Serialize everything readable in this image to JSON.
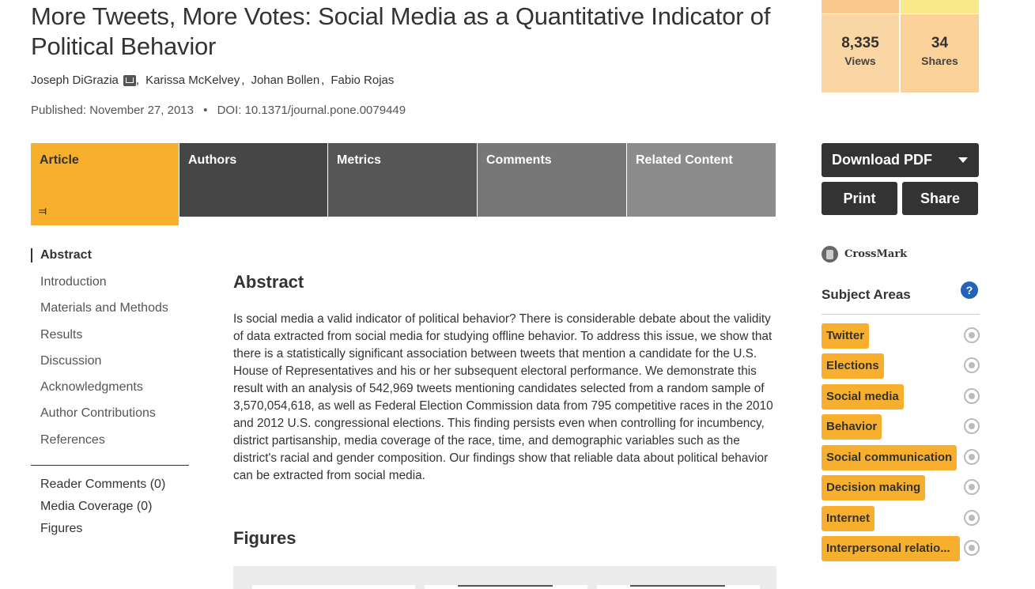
{
  "article": {
    "title": "More Tweets, More Votes: Social Media as a Quantitative Indicator of Political Behavior",
    "authors": [
      "Joseph DiGrazia",
      "Karissa McKelvey",
      "Johan Bollen",
      "Fabio Rojas"
    ],
    "published": "Published: November 27, 2013",
    "doi": "DOI: 10.1371/journal.pone.0079449"
  },
  "metrics": {
    "views_count": "8,335",
    "views_label": "Views",
    "shares_count": "34",
    "shares_label": "Shares"
  },
  "tabs": [
    {
      "label": "Article"
    },
    {
      "label": "Authors"
    },
    {
      "label": "Metrics"
    },
    {
      "label": "Comments"
    },
    {
      "label": "Related Content"
    }
  ],
  "tab_colors": [
    "#f8af2d",
    "#464646",
    "#565656",
    "#777777",
    "#8c8c8c"
  ],
  "actions": {
    "download_pdf": "Download PDF",
    "print": "Print",
    "share": "Share"
  },
  "crossmark_label": "CrossMark",
  "subject_areas": {
    "title": "Subject Areas",
    "help": "?",
    "tags": [
      "Twitter",
      "Elections",
      "Social media",
      "Behavior",
      "Social communication",
      "Decision making",
      "Internet",
      "Interpersonal relatio..."
    ]
  },
  "nav": {
    "sections": [
      "Abstract",
      "Introduction",
      "Materials and Methods",
      "Results",
      "Discussion",
      "Acknowledgments",
      "Author Contributions",
      "References"
    ],
    "extras": [
      "Reader Comments (0)",
      "Media Coverage (0)",
      "Figures"
    ]
  },
  "abstract": {
    "heading": "Abstract",
    "text": "Is social media a valid indicator of political behavior? There is considerable debate about the validity of data extracted from social media for studying offline behavior. To address this issue, we show that there is a statistically significant association between tweets that mention a candidate for the U.S. House of Representatives and his or her subsequent electoral performance. We demonstrate this result with an analysis of 542,969 tweets mentioning candidates selected from a random sample of 3,570,054,618, as well as Federal Election Commission data from 795 competitive races in the 2010 and 2012 U.S. congressional elections. This finding persists even when controlling for incumbency, district partisanship, media coverage of the race, time, and demographic variables such as the district's racial and gender composition. Our findings show that reliable data about political behavior can be extracted from social media."
  },
  "figures_heading": "Figures",
  "colors": {
    "accent": "#f8af2d",
    "metric_views_bg": "#fad6a5",
    "metric_shares_bg": "#fbd39a",
    "metric_strip_left": "#f8c98a",
    "metric_strip_right": "#f8e98a",
    "button_dark": "#333333",
    "help_blue": "#2563b8"
  }
}
